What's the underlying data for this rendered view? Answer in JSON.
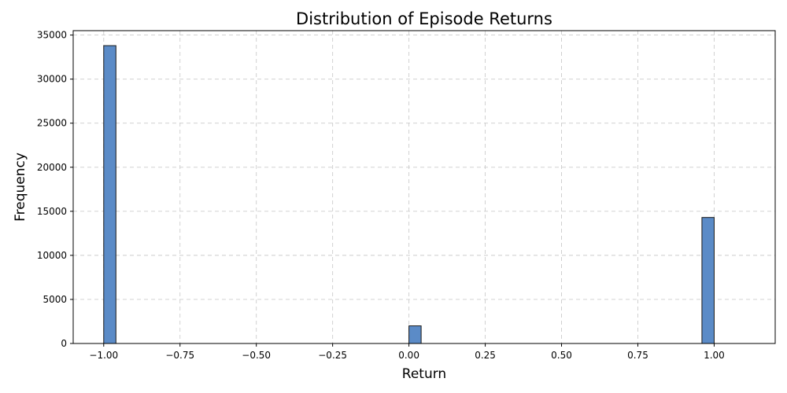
{
  "chart_data": {
    "type": "bar",
    "title": "Distribution of Episode Returns",
    "xlabel": "Return",
    "ylabel": "Frequency",
    "xlim": [
      -1.1,
      1.2
    ],
    "ylim": [
      0,
      35500
    ],
    "xticks": [
      -1.0,
      -0.75,
      -0.5,
      -0.25,
      0.0,
      0.25,
      0.5,
      0.75,
      1.0
    ],
    "xtick_labels": [
      "−1.00",
      "−0.75",
      "−0.50",
      "−0.25",
      "0.00",
      "0.25",
      "0.50",
      "0.75",
      "1.00"
    ],
    "yticks": [
      0,
      5000,
      10000,
      15000,
      20000,
      25000,
      30000,
      35000
    ],
    "ytick_labels": [
      "0",
      "5000",
      "10000",
      "15000",
      "20000",
      "25000",
      "30000",
      "35000"
    ],
    "grid": true,
    "bar_color": "#5b8bc7",
    "bars": [
      {
        "x0": -1.0,
        "x1": -0.96,
        "value": 33800
      },
      {
        "x0": 0.0,
        "x1": 0.04,
        "value": 2000
      },
      {
        "x0": 0.96,
        "x1": 1.0,
        "value": 14300
      }
    ]
  }
}
